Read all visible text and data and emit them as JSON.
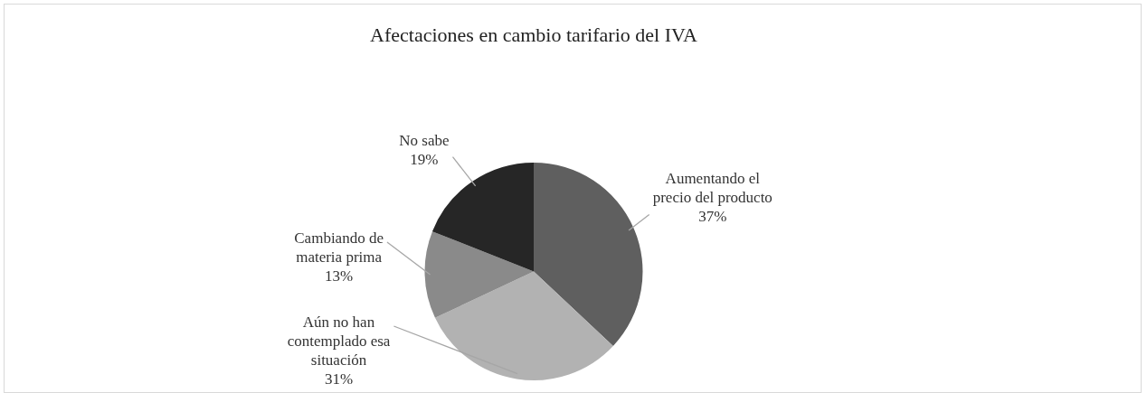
{
  "chart_data": {
    "type": "pie",
    "title": "Afectaciones en cambio tarifario del IVA",
    "categories": [
      "Aumentando el precio del producto",
      "Aún no han contemplado esa situación",
      "Cambiando de materia prima",
      "No sabe"
    ],
    "values": [
      37,
      31,
      13,
      19
    ],
    "colors": [
      "#5f5f5f",
      "#b2b2b2",
      "#8a8a8a",
      "#262626"
    ],
    "value_labels": [
      "37%",
      "31%",
      "13%",
      "19%"
    ],
    "legend": false
  }
}
